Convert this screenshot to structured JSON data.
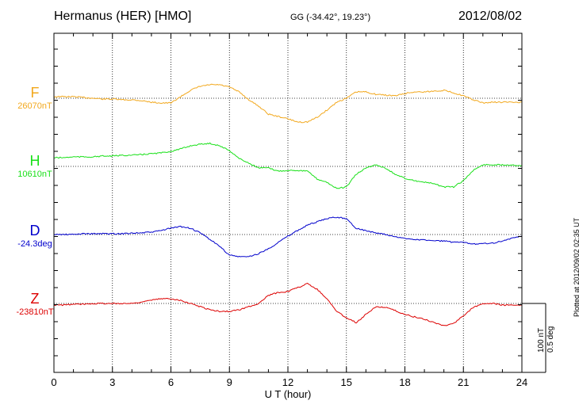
{
  "header": {
    "station": "Hermanus (HER)  [HMO]",
    "coords": "GG (-34.42°,  19.23°)",
    "date": "2012/08/02"
  },
  "plotted_note": "Plotted at 2012/09/02 02:35 UT",
  "scale": {
    "field": "100 nT",
    "declination": "0.5 deg"
  },
  "chart_data": {
    "type": "line",
    "xlabel": "U T (hour)",
    "xlim": [
      0,
      24
    ],
    "xticks": [
      0,
      3,
      6,
      9,
      12,
      15,
      18,
      21,
      24
    ],
    "x": [
      0,
      0.5,
      1,
      1.5,
      2,
      2.5,
      3,
      3.5,
      4,
      4.5,
      5,
      5.5,
      6,
      6.5,
      7,
      7.5,
      8,
      8.5,
      9,
      9.5,
      10,
      10.5,
      11,
      11.5,
      12,
      12.5,
      13,
      13.5,
      14,
      14.5,
      15,
      15.5,
      16,
      16.5,
      17,
      17.5,
      18,
      18.5,
      19,
      19.5,
      20,
      20.5,
      21,
      21.5,
      22,
      22.5,
      23,
      23.5,
      24
    ],
    "series": [
      {
        "name": "F",
        "baseline": "26070nT",
        "color": "#f2a81d",
        "values": [
          2,
          2,
          2,
          1,
          0,
          -1,
          -1,
          -2,
          -2,
          -3,
          -5,
          -6,
          -6,
          2,
          10,
          15,
          17,
          17,
          14,
          8,
          -2,
          -10,
          -20,
          -23,
          -26,
          -30,
          -30,
          -24,
          -15,
          -5,
          0,
          8,
          8,
          5,
          4,
          3,
          6,
          8,
          8,
          9,
          10,
          7,
          3,
          -2,
          -6,
          -5,
          -5,
          -5,
          -5
        ]
      },
      {
        "name": "H",
        "baseline": "10610nT",
        "color": "#18e018",
        "values": [
          11,
          11,
          12,
          12,
          12,
          13,
          13,
          14,
          14,
          15,
          16,
          17,
          19,
          22,
          26,
          28,
          29,
          26,
          20,
          10,
          4,
          -2,
          -2,
          -6,
          -5,
          -5,
          -6,
          -16,
          -20,
          -28,
          -26,
          -10,
          -2,
          2,
          -2,
          -10,
          -15,
          -18,
          -20,
          -22,
          -26,
          -26,
          -18,
          -5,
          2,
          2,
          2,
          2,
          1
        ]
      },
      {
        "name": "D",
        "baseline": "-24.3deg",
        "color": "#0000cc",
        "values": [
          0,
          0,
          0,
          1,
          1,
          1,
          1,
          1,
          2,
          2,
          3,
          5,
          8,
          10,
          8,
          2,
          -6,
          -15,
          -26,
          -28,
          -28,
          -24,
          -18,
          -10,
          -2,
          5,
          12,
          16,
          20,
          22,
          20,
          8,
          5,
          2,
          0,
          -3,
          -5,
          -6,
          -7,
          -8,
          -8,
          -10,
          -10,
          -12,
          -11,
          -11,
          -8,
          -5,
          -2
        ]
      },
      {
        "name": "Z",
        "baseline": "-23810nT",
        "color": "#dd0000",
        "values": [
          -2,
          -2,
          -1,
          -1,
          0,
          0,
          0,
          0,
          0,
          2,
          4,
          6,
          6,
          4,
          0,
          -4,
          -8,
          -10,
          -10,
          -8,
          -4,
          0,
          10,
          14,
          15,
          20,
          25,
          18,
          6,
          -10,
          -18,
          -24,
          -14,
          -4,
          -5,
          -9,
          -14,
          -17,
          -20,
          -24,
          -28,
          -25,
          -16,
          -5,
          0,
          0,
          -2,
          -2,
          -2
        ]
      }
    ]
  }
}
